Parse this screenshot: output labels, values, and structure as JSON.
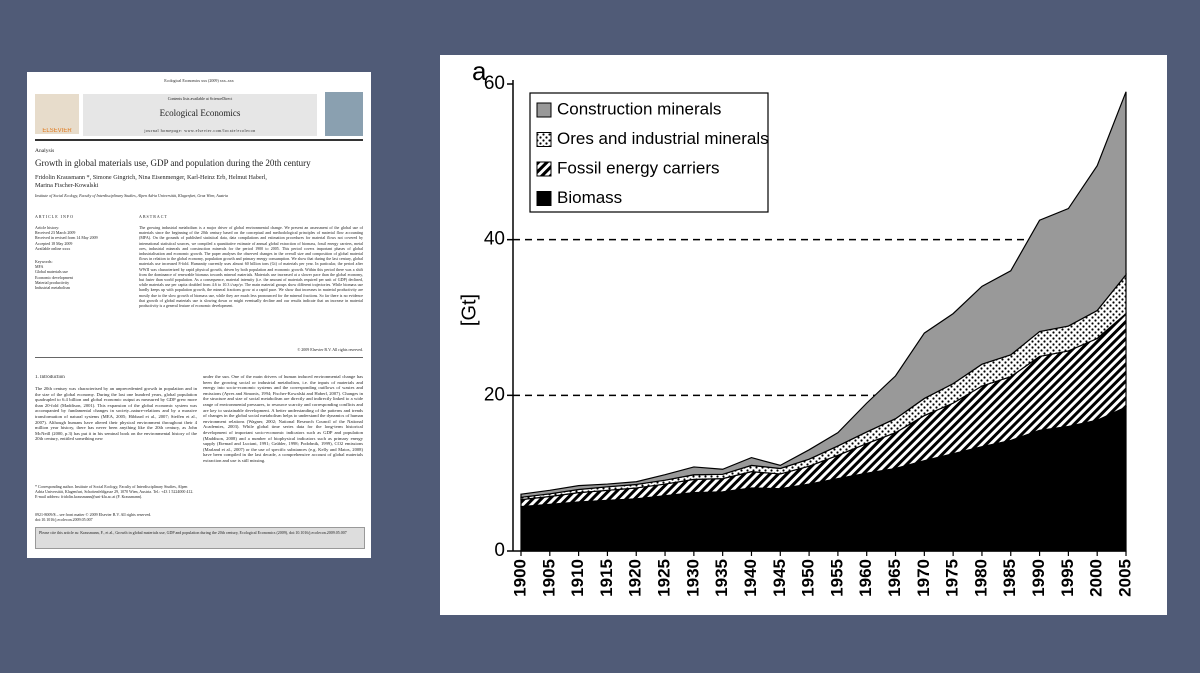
{
  "paper": {
    "running_head": "Ecological Economics xxx (2009) xxx–xxx",
    "contents_line": "Contents lists available at ScienceDirect",
    "journal": "Ecological Economics",
    "homepage": "journal homepage: www.elsevier.com/locate/ecolecon",
    "publisher": "ELSEVIER",
    "section": "Analysis",
    "title": "Growth in global materials use, GDP and population during the 20th century",
    "authors": "Fridolin Krausmann *, Simone Gingrich, Nina Eisenmenger, Karl-Heinz Erb, Helmut Haberl, Marina Fischer-Kowalski",
    "affiliation": "Institute of Social Ecology, Faculty of Interdisciplinary Studies, Alpen Adria Universität, Klagenfurt, Graz Wien, Austria",
    "article_info_heading": "ARTICLE INFO",
    "history": [
      "Article history:",
      "Received 23 March 2009",
      "Received in revised form 14 May 2009",
      "Accepted 18 May 2009",
      "Available online xxxx"
    ],
    "keywords": [
      "Keywords:",
      "MFA",
      "Global materials use",
      "Economic development",
      "Material productivity",
      "Industrial metabolism"
    ],
    "abstract_heading": "ABSTRACT",
    "abstract": "The growing industrial metabolism is a major driver of global environmental change. We present an assessment of the global use of materials since the beginning of the 20th century based on the conceptual and methodological principles of material flow accounting (MFA). On the grounds of published statistical data, data compilations and estimation procedures for material flows not covered by international statistical sources, we compiled a quantitative estimate of annual global extraction of biomass, fossil energy carriers, metal ores, industrial minerals and construction minerals for the period 1900 to 2005. This period covers important phases of global industrialisation and economic growth. The paper analyses the observed changes in the overall size and composition of global material flows in relation to the global economy, population growth and primary energy consumption. We show that during the last century, global materials use increased 8-fold. Humanity currently uses almost 60 billion tons (Gt) of materials per year. In particular, the period after WWII was characterized by rapid physical growth, driven by both population and economic growth. Within this period there was a shift from the dominance of renewable biomass towards mineral materials. Materials use increased at a slower pace than the global economy, but faster than world population. As a consequence, material intensity (i.e. the amount of materials required per unit of GDP) declined, while materials use per capita doubled from 4.6 to 10.3 t/cap/yr. The main material groups show different trajectories. While biomass use hardly keeps up with population growth, the mineral fractions grow at a rapid pace. We show that increases in material productivity are mostly due to the slow growth of biomass use, while they are much less pronounced for the mineral fractions. So far there is no evidence that growth of global materials use is slowing down or might eventually decline and our results indicate that an increase in material productivity is a general feature of economic development.",
    "copyright": "© 2009 Elsevier B.V. All rights reserved.",
    "intro_heading": "1. Introduction",
    "intro_col1": "The 20th century was characterised by an unprecedented growth in population and in the size of the global economy. During the last one hundred years, global population quadrupled to 6.4 billion and global economic output as measured by GDP grew more than 20-fold (Maddison, 2001). This expansion of the global economic system was accompanied by fundamental changes in society–nature-relations and by a massive transformation of natural systems (MEA, 2005; Hibbard et al., 2007; Steffen et al., 2007). Although humans have altered their physical environment throughout their 4 million year history, there has never been anything like the 20th century, as John McNeill (2000, p.3) has put it in his seminal book on the environmental history of the 20th century, entitled something new",
    "intro_col2": "under the sun. One of the main drivers of human induced environmental change has been the growing social or industrial metabolism, i.e. the inputs of materials and energy into socio-economic systems and the corresponding outflows of wastes and emissions (Ayres and Simonis, 1994; Fischer-Kowalski and Haberl, 2007). Changes in the structure and size of social metabolism are directly and indirectly linked to a wide range of environmental pressures, to resource scarcity and corresponding conflicts and are key to sustainable development. A better understanding of the patterns and trends of changes in the global social metabolism helps to understand the dynamics of human environment relations (Wagner, 2002; National Research Council of the National Academies, 2003). While global time series data for the long-term historical development of important socio-economic indicators such as GDP and population (Maddison, 2008) and a number of biophysical indicators such as primary energy supply (Etemad and Luciani, 1991; Grübler, 1998; Podobnik, 1999), CO2 emissions (Marland et al., 2007) or the use of specific substances (e.g. Kelly and Matos, 2008) have been compiled in the last decade, a comprehensive account of global materials extraction and use is still missing.",
    "footnote": "* Corresponding author. Institute of Social Ecology, Faculty of Interdisciplinary Studies, Alpen Adria Universität, Klagenfurt, Schottenfeldgasse 29, 1070 Wien, Austria. Tel.: +43 1 5224000 412. E-mail address: fridolin.krausmann@uni-klu.ac.at (F. Krausmann).",
    "issn": "0921-8009/$ – see front matter © 2009 Elsevier B.V. All rights reserved. doi:10.1016/j.ecolecon.2009.05.007",
    "cite_box": "Please cite this article as: Krausmann, F., et al., Growth in global materials use, GDP and population during the 20th century, Ecological Economics (2009), doi:10.1016/j.ecolecon.2009.05.007"
  },
  "chart_data": {
    "type": "stacked_area",
    "panel_label": "a",
    "y_label": "[Gt]",
    "x": [
      1900,
      1905,
      1910,
      1915,
      1920,
      1925,
      1930,
      1935,
      1940,
      1945,
      1950,
      1955,
      1960,
      1965,
      1970,
      1975,
      1980,
      1985,
      1990,
      1995,
      2000,
      2005
    ],
    "xlim": [
      1900,
      2005
    ],
    "xticks": [
      1900,
      1905,
      1910,
      1915,
      1920,
      1925,
      1930,
      1935,
      1940,
      1945,
      1950,
      1955,
      1960,
      1965,
      1970,
      1975,
      1980,
      1985,
      1990,
      1995,
      2000,
      2005
    ],
    "ylim": [
      0,
      60
    ],
    "yticks": [
      0,
      20,
      40,
      60
    ],
    "grid": "dashed",
    "legend": "top-left",
    "series": [
      {
        "name": "Construction minerals",
        "color": "#999999",
        "values": [
          0.4,
          0.45,
          0.5,
          0.35,
          0.35,
          0.7,
          1.0,
          0.65,
          1.0,
          0.4,
          1.2,
          1.7,
          3.7,
          5.5,
          8.4,
          9.0,
          10.0,
          10.8,
          14.3,
          15.1,
          18.6,
          23.5
        ]
      },
      {
        "name": "Ores and industrial minerals",
        "color": "#ffffff",
        "hatch": "dots",
        "values": [
          0.3,
          0.35,
          0.4,
          0.45,
          0.45,
          0.5,
          0.6,
          0.55,
          0.8,
          0.7,
          0.9,
          1.2,
          1.5,
          1.8,
          2.2,
          2.5,
          2.8,
          2.8,
          3.2,
          3.2,
          3.6,
          5.0
        ]
      },
      {
        "name": "Fossil energy carriers",
        "color": "#ffffff",
        "hatch": "stripes",
        "values": [
          0.9,
          1.0,
          1.2,
          1.3,
          1.4,
          1.5,
          1.7,
          1.7,
          2.1,
          1.9,
          2.3,
          3.0,
          3.8,
          4.6,
          5.8,
          6.5,
          7.8,
          8.2,
          9.5,
          9.7,
          10.5,
          12.0
        ]
      },
      {
        "name": "Biomass",
        "color": "#000000",
        "values": [
          5.7,
          6.0,
          6.3,
          6.5,
          6.7,
          7.1,
          7.5,
          7.6,
          8.1,
          8.0,
          8.6,
          9.3,
          10.0,
          10.6,
          11.6,
          12.5,
          13.4,
          14.2,
          15.5,
          16.0,
          16.8,
          18.5
        ]
      }
    ]
  }
}
